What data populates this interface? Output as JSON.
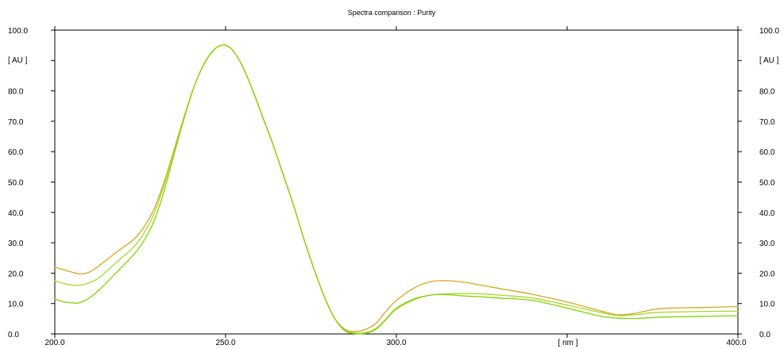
{
  "chart_data": {
    "type": "line",
    "title": "Spectra comparison : Purity",
    "x_unit_label": "[ nm ]",
    "y_unit_label": "[ AU ]",
    "xlim": [
      200,
      400
    ],
    "ylim": [
      0,
      100
    ],
    "x_ticks": [
      {
        "value": 200,
        "label": "200.0"
      },
      {
        "value": 250,
        "label": "250.0"
      },
      {
        "value": 300,
        "label": "300.0"
      },
      {
        "value": 400,
        "label": "400.0"
      }
    ],
    "y_ticks": [
      {
        "value": 0,
        "label": "0.0"
      },
      {
        "value": 10,
        "label": "10.0"
      },
      {
        "value": 20,
        "label": "20.0"
      },
      {
        "value": 30,
        "label": "30.0"
      },
      {
        "value": 40,
        "label": "40.0"
      },
      {
        "value": 50,
        "label": "50.0"
      },
      {
        "value": 60,
        "label": "60.0"
      },
      {
        "value": 70,
        "label": "70.0"
      },
      {
        "value": 80,
        "label": "80.0"
      },
      {
        "value": 100,
        "label": "100.0"
      }
    ],
    "grid": false,
    "right_axis_mirror": true,
    "series": [
      {
        "color": "#d9a520",
        "x": [
          200,
          203,
          207,
          210,
          213,
          217,
          220,
          223,
          226,
          229,
          232,
          235,
          238,
          241,
          244,
          247,
          249,
          250,
          252,
          255,
          258,
          261,
          264,
          267,
          270,
          273,
          276,
          279,
          282,
          285,
          288,
          291,
          294,
          297,
          300,
          305,
          310,
          315,
          320,
          325,
          330,
          340,
          350,
          360,
          365,
          370,
          375,
          380,
          390,
          400
        ],
        "y": [
          22,
          21,
          19.8,
          20.3,
          22.5,
          26,
          28.5,
          31,
          35,
          41,
          50,
          61,
          72,
          82,
          89.5,
          94,
          95,
          95,
          93.5,
          88,
          80,
          71,
          62,
          52,
          42,
          31,
          21,
          12,
          5,
          1.5,
          0.8,
          1.5,
          3.5,
          7.5,
          11,
          15,
          17.2,
          17.5,
          17,
          16,
          15,
          13,
          10.5,
          7.5,
          6.3,
          6.8,
          8,
          8.5,
          8.7,
          9
        ]
      },
      {
        "color": "#a8d832",
        "x": [
          200,
          203,
          207,
          210,
          213,
          217,
          220,
          223,
          226,
          229,
          232,
          235,
          238,
          241,
          244,
          247,
          249,
          250,
          252,
          255,
          258,
          261,
          264,
          267,
          270,
          273,
          276,
          279,
          282,
          285,
          288,
          291,
          294,
          297,
          300,
          305,
          310,
          315,
          320,
          325,
          330,
          340,
          350,
          360,
          365,
          370,
          375,
          380,
          390,
          400
        ],
        "y": [
          17.5,
          16.5,
          16,
          16.8,
          18.5,
          22.5,
          25.5,
          28.5,
          33,
          39.5,
          49,
          60.5,
          72,
          82,
          89.5,
          94,
          95,
          95,
          93.5,
          88,
          80,
          71,
          62,
          52,
          42,
          31,
          21,
          12,
          5,
          1.2,
          0.3,
          0.5,
          1.8,
          5,
          8.5,
          11.5,
          12.8,
          13.2,
          13.3,
          13.2,
          12.8,
          11.8,
          9.5,
          7,
          6,
          6.3,
          7,
          7.2,
          7.4,
          7.5
        ]
      },
      {
        "color": "#82d400",
        "x": [
          200,
          203,
          207,
          210,
          213,
          217,
          220,
          223,
          226,
          229,
          232,
          235,
          238,
          241,
          244,
          247,
          249,
          250,
          252,
          255,
          258,
          261,
          264,
          267,
          270,
          273,
          276,
          279,
          282,
          285,
          288,
          291,
          294,
          297,
          300,
          305,
          310,
          315,
          320,
          325,
          330,
          340,
          350,
          360,
          365,
          370,
          375,
          380,
          390,
          400
        ],
        "y": [
          11.5,
          10.5,
          10.2,
          11.8,
          14.5,
          19,
          22.5,
          26,
          30.5,
          37,
          47,
          59.5,
          71.5,
          82,
          89.5,
          94,
          95,
          95,
          93.5,
          88,
          80,
          71,
          62,
          52,
          42,
          31,
          21,
          12,
          5,
          1,
          0.1,
          0.2,
          1.5,
          4.8,
          8.2,
          11.2,
          12.8,
          12.9,
          12.5,
          12.2,
          11.8,
          11,
          8.5,
          5.8,
          5.2,
          5.1,
          5.4,
          5.6,
          5.8,
          6
        ]
      }
    ]
  }
}
